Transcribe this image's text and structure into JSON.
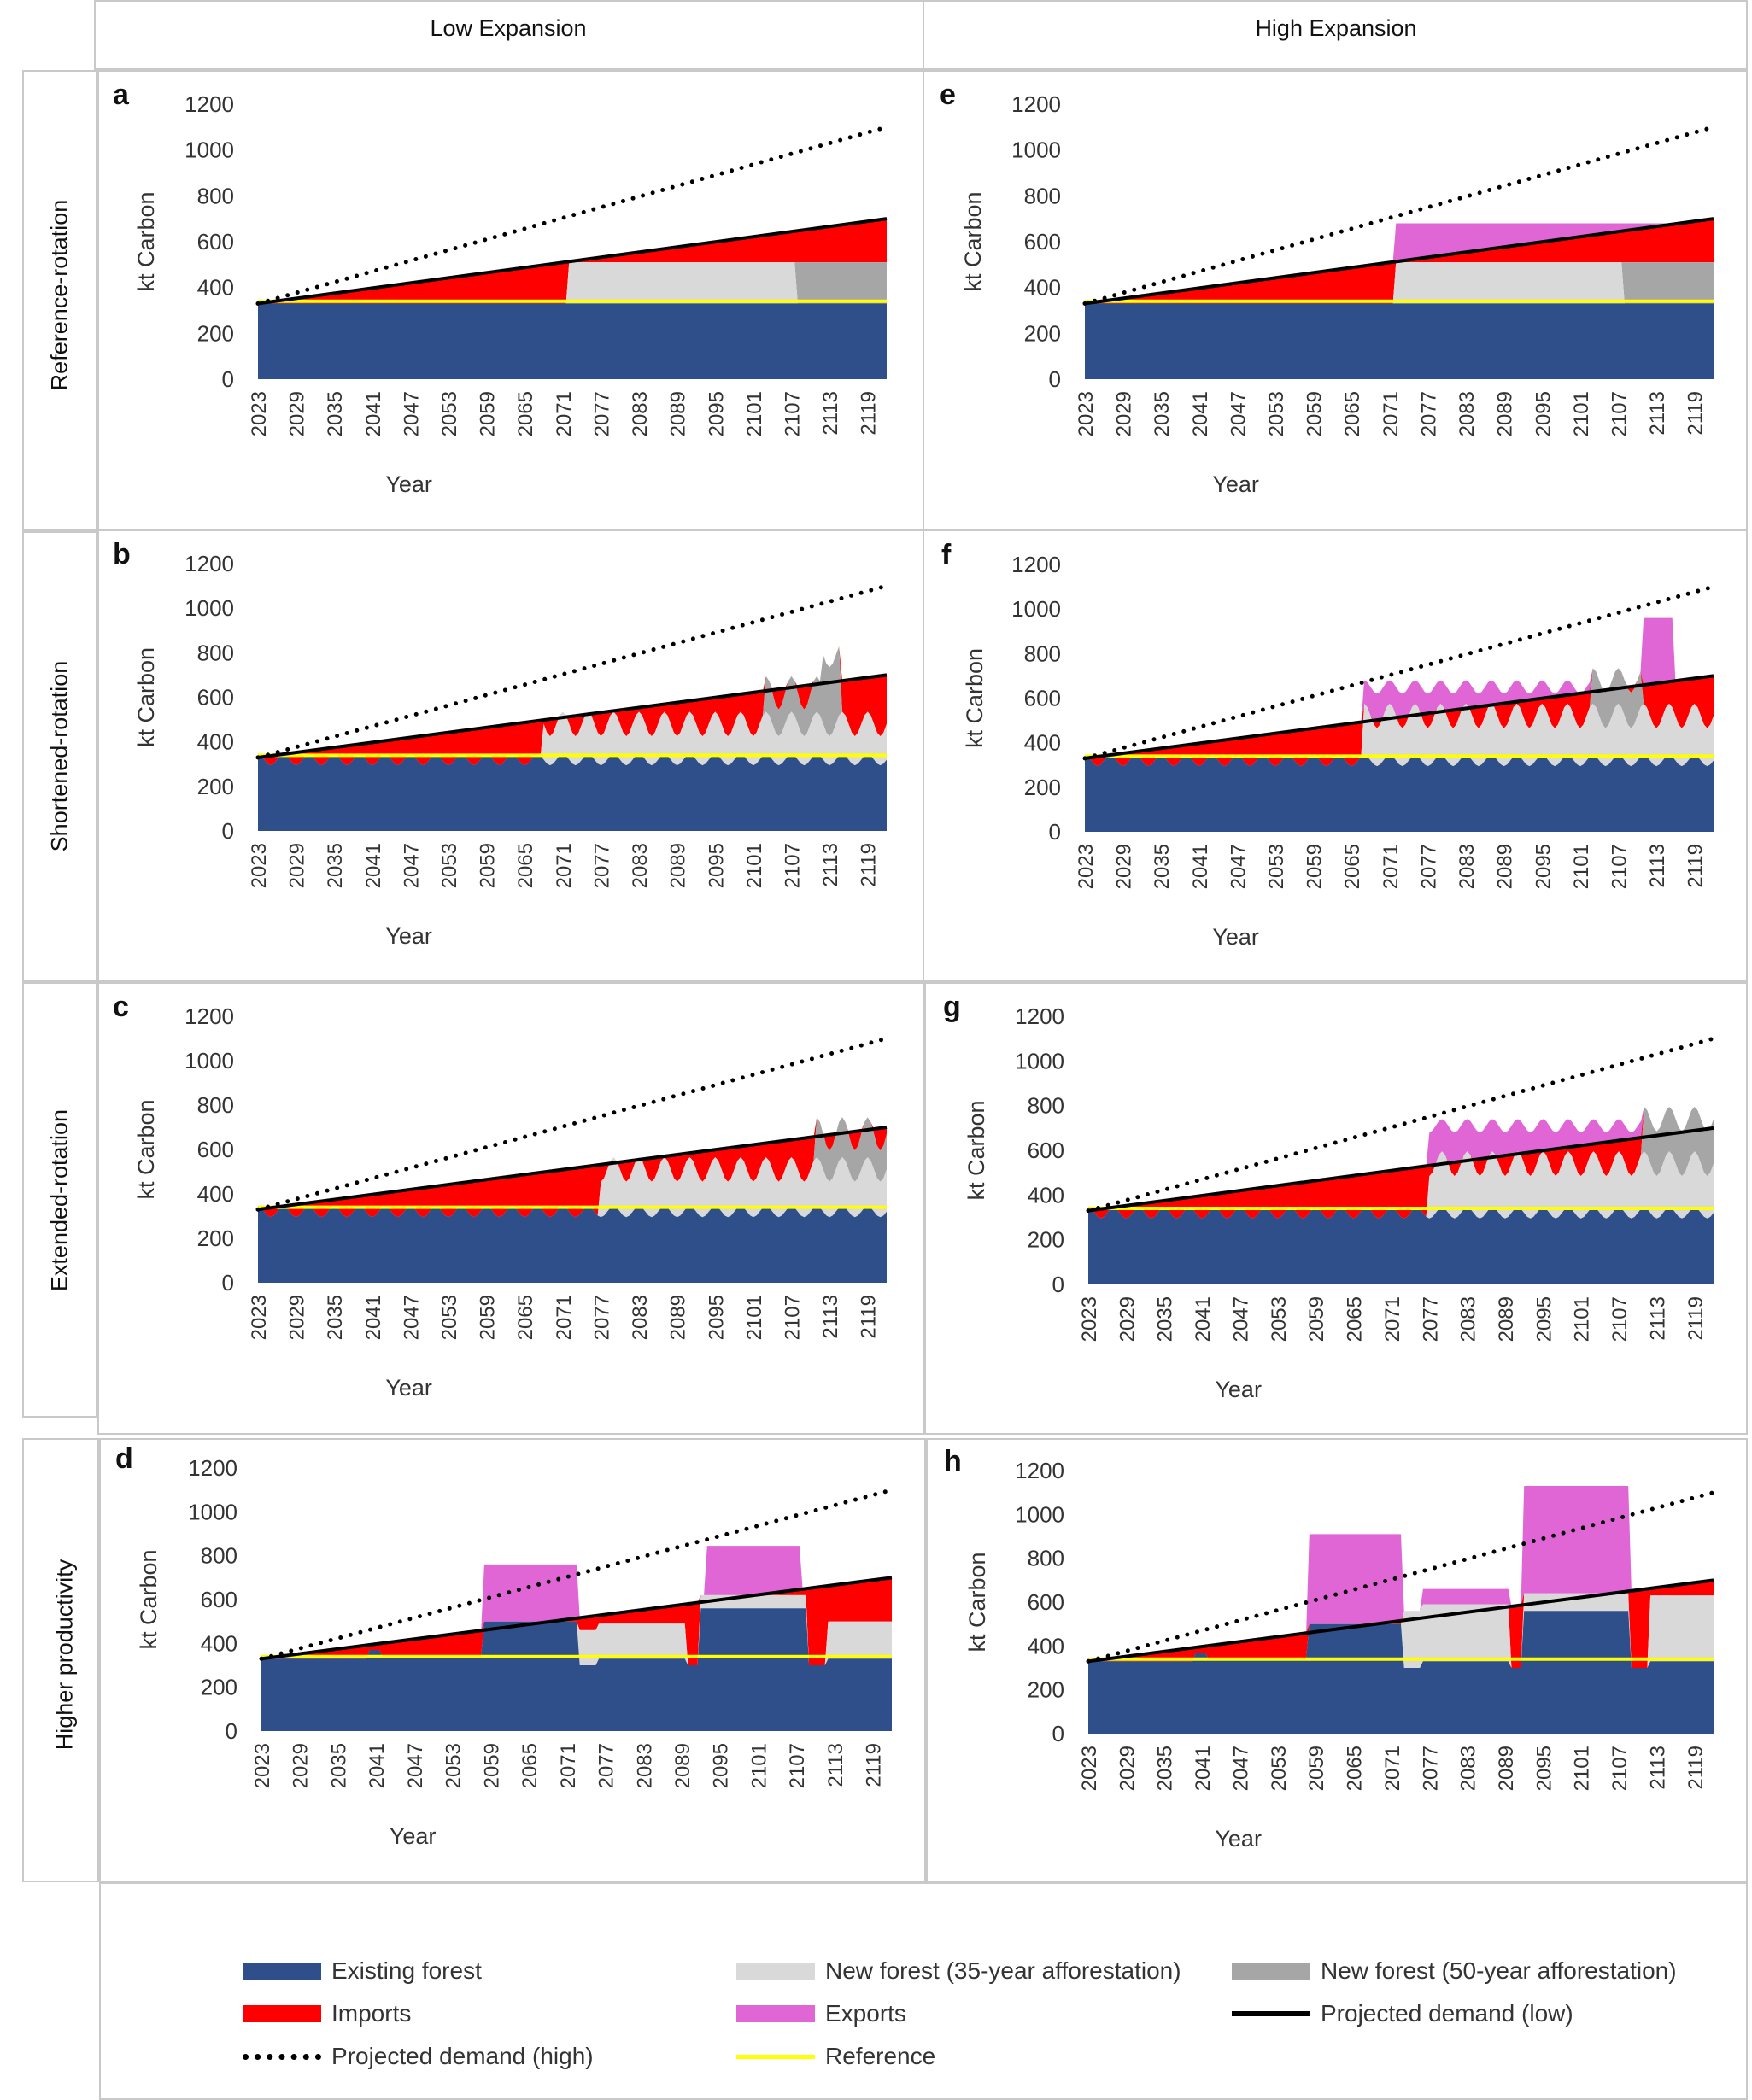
{
  "columns": [
    "Low Expansion",
    "High Expansion"
  ],
  "rows": [
    "Reference-rotation",
    "Shortened-rotation",
    "Extended-rotation",
    "Higher productivity"
  ],
  "colors": {
    "existing": "#2E4F8A",
    "new35": "#D9D9D9",
    "new50": "#A6A6A6",
    "imports": "#FF0000",
    "exports": "#E066D6",
    "demand_low": "#000000",
    "demand_high": "#000000",
    "reference": "#FFFF00"
  },
  "legend": [
    {
      "key": "existing",
      "label": "Existing forest",
      "style": "fill"
    },
    {
      "key": "new35",
      "label": "New forest (35-year afforestation)",
      "style": "fill"
    },
    {
      "key": "new50",
      "label": "New forest (50-year afforestation)",
      "style": "fill"
    },
    {
      "key": "imports",
      "label": "Imports",
      "style": "fill"
    },
    {
      "key": "exports",
      "label": "Exports",
      "style": "fill"
    },
    {
      "key": "demand_low",
      "label": "Projected demand (low)",
      "style": "solid"
    },
    {
      "key": "demand_high",
      "label": "Projected demand (high)",
      "style": "dotted"
    },
    {
      "key": "reference",
      "label": "Reference",
      "style": "line"
    }
  ],
  "chart_data": [
    {
      "panel": "a",
      "type": "area",
      "row": "Reference-rotation",
      "column": "Low Expansion",
      "ylabel": "kt Carbon",
      "xlabel": "Year",
      "ylim": [
        0,
        1200
      ],
      "yticks": [
        0,
        200,
        400,
        600,
        800,
        1000,
        1200
      ],
      "xlim": [
        2023,
        2122
      ],
      "xticks": [
        "2023",
        "2029",
        "2035",
        "2041",
        "2047",
        "2053",
        "2059",
        "2065",
        "2071",
        "2077",
        "2083",
        "2089",
        "2095",
        "2101",
        "2107",
        "2113",
        "2119"
      ],
      "demand_low": [
        [
          2023,
          330
        ],
        [
          2122,
          700
        ]
      ],
      "demand_high": [
        [
          2023,
          330
        ],
        [
          2122,
          1100
        ]
      ],
      "reference": 340,
      "existing": [
        [
          2023,
          330
        ],
        [
          2122,
          330
        ]
      ],
      "new35": [
        [
          2023,
          0
        ],
        [
          2072,
          0
        ],
        [
          2073,
          180
        ],
        [
          2122,
          180
        ]
      ],
      "new50": [
        [
          2023,
          0
        ],
        [
          2108,
          0
        ],
        [
          2109,
          180
        ],
        [
          2122,
          180
        ]
      ],
      "imports_to": "demand_low"
    },
    {
      "panel": "b",
      "type": "area",
      "row": "Shortened-rotation",
      "column": "Low Expansion",
      "ylabel": "kt Carbon",
      "xlabel": "Year",
      "ylim": [
        0,
        1200
      ],
      "yticks": [
        0,
        200,
        400,
        600,
        800,
        1000,
        1200
      ],
      "xlim": [
        2023,
        2122
      ],
      "xticks": [
        "2023",
        "2029",
        "2035",
        "2041",
        "2047",
        "2053",
        "2059",
        "2065",
        "2071",
        "2077",
        "2083",
        "2089",
        "2095",
        "2101",
        "2107",
        "2113",
        "2119"
      ],
      "demand_low": [
        [
          2023,
          330
        ],
        [
          2122,
          700
        ]
      ],
      "demand_high": [
        [
          2023,
          330
        ],
        [
          2122,
          1100
        ]
      ],
      "reference": 340,
      "existing_osc": {
        "base": 330,
        "amp": 30,
        "period": 5
      },
      "new35_level": [
        [
          2023,
          0
        ],
        [
          2067,
          0
        ],
        [
          2068,
          170
        ],
        [
          2122,
          170
        ]
      ],
      "new50_level": [
        [
          2023,
          0
        ],
        [
          2104,
          0
        ],
        [
          2105,
          150
        ],
        [
          2122,
          150
        ]
      ],
      "imports_to": "demand_low"
    },
    {
      "panel": "c",
      "type": "area",
      "row": "Extended-rotation",
      "column": "Low Expansion",
      "ylabel": "kt Carbon",
      "xlabel": "Year",
      "ylim": [
        0,
        1200
      ],
      "yticks": [
        0,
        200,
        400,
        600,
        800,
        1000,
        1200
      ],
      "xlim": [
        2023,
        2122
      ],
      "xticks": [
        "2023",
        "2029",
        "2035",
        "2041",
        "2047",
        "2053",
        "2059",
        "2065",
        "2071",
        "2077",
        "2083",
        "2089",
        "2095",
        "2101",
        "2107",
        "2113",
        "2119"
      ],
      "demand_low": [
        [
          2023,
          330
        ],
        [
          2122,
          700
        ]
      ],
      "demand_high": [
        [
          2023,
          330
        ],
        [
          2122,
          1100
        ]
      ],
      "reference": 340,
      "existing_osc": {
        "base": 330,
        "amp": 30,
        "period": 5
      },
      "new35_level": [
        [
          2023,
          0
        ],
        [
          2076,
          0
        ],
        [
          2077,
          190
        ],
        [
          2122,
          190
        ]
      ],
      "new50_level": [
        [
          2023,
          0
        ],
        [
          2110,
          0
        ],
        [
          2111,
          150
        ],
        [
          2122,
          150
        ]
      ],
      "imports_to": "demand_low"
    },
    {
      "panel": "d",
      "type": "area",
      "row": "Higher productivity",
      "column": "Low Expansion",
      "ylabel": "kt Carbon",
      "xlabel": "Year",
      "ylim": [
        0,
        1200
      ],
      "yticks": [
        0,
        200,
        400,
        600,
        800,
        1000,
        1200
      ],
      "xlim": [
        2023,
        2122
      ],
      "xticks": [
        "2023",
        "2029",
        "2035",
        "2041",
        "2047",
        "2053",
        "2059",
        "2065",
        "2071",
        "2077",
        "2083",
        "2089",
        "2095",
        "2101",
        "2107",
        "2113",
        "2119"
      ],
      "demand_low": [
        [
          2023,
          330
        ],
        [
          2122,
          700
        ]
      ],
      "demand_high": [
        [
          2023,
          330
        ],
        [
          2122,
          1100
        ]
      ],
      "reference": 340
    },
    {
      "panel": "e",
      "type": "area",
      "row": "Reference-rotation",
      "column": "High Expansion",
      "ylabel": "kt Carbon",
      "xlabel": "Year",
      "ylim": [
        0,
        1200
      ],
      "yticks": [
        0,
        200,
        400,
        600,
        800,
        1000,
        1200
      ],
      "xlim": [
        2023,
        2122
      ],
      "xticks": [
        "2023",
        "2029",
        "2035",
        "2041",
        "2047",
        "2053",
        "2059",
        "2065",
        "2071",
        "2077",
        "2083",
        "2089",
        "2095",
        "2101",
        "2107",
        "2113",
        "2119"
      ],
      "demand_low": [
        [
          2023,
          330
        ],
        [
          2122,
          700
        ]
      ],
      "demand_high": [
        [
          2023,
          330
        ],
        [
          2122,
          1100
        ]
      ],
      "reference": 340,
      "exports_top": 680
    },
    {
      "panel": "f",
      "type": "area",
      "row": "Shortened-rotation",
      "column": "High Expansion",
      "ylabel": "kt Carbon",
      "xlabel": "Year",
      "ylim": [
        0,
        1200
      ],
      "yticks": [
        0,
        200,
        400,
        600,
        800,
        1000,
        1200
      ],
      "xlim": [
        2023,
        2122
      ],
      "xticks": [
        "2023",
        "2029",
        "2035",
        "2041",
        "2047",
        "2053",
        "2059",
        "2065",
        "2071",
        "2077",
        "2083",
        "2089",
        "2095",
        "2101",
        "2107",
        "2113",
        "2119"
      ],
      "demand_low": [
        [
          2023,
          330
        ],
        [
          2122,
          700
        ]
      ],
      "demand_high": [
        [
          2023,
          330
        ],
        [
          2122,
          1100
        ]
      ],
      "reference": 340
    },
    {
      "panel": "g",
      "type": "area",
      "row": "Extended-rotation",
      "column": "High Expansion",
      "ylabel": "kt Carbon",
      "xlabel": "Year",
      "ylim": [
        0,
        1200
      ],
      "yticks": [
        0,
        200,
        400,
        600,
        800,
        1000,
        1200
      ],
      "xlim": [
        2023,
        2122
      ],
      "xticks": [
        "2023",
        "2029",
        "2035",
        "2041",
        "2047",
        "2053",
        "2059",
        "2065",
        "2071",
        "2077",
        "2083",
        "2089",
        "2095",
        "2101",
        "2107",
        "2113",
        "2119"
      ],
      "demand_low": [
        [
          2023,
          330
        ],
        [
          2122,
          700
        ]
      ],
      "demand_high": [
        [
          2023,
          330
        ],
        [
          2122,
          1100
        ]
      ],
      "reference": 340
    },
    {
      "panel": "h",
      "type": "area",
      "row": "Higher productivity",
      "column": "High Expansion",
      "ylabel": "kt Carbon",
      "xlabel": "Year",
      "ylim": [
        0,
        1200
      ],
      "yticks": [
        0,
        200,
        400,
        600,
        800,
        1000,
        1200
      ],
      "xlim": [
        2023,
        2122
      ],
      "xticks": [
        "2023",
        "2029",
        "2035",
        "2041",
        "2047",
        "2053",
        "2059",
        "2065",
        "2071",
        "2077",
        "2083",
        "2089",
        "2095",
        "2101",
        "2107",
        "2113",
        "2119"
      ],
      "demand_low": [
        [
          2023,
          330
        ],
        [
          2122,
          700
        ]
      ],
      "demand_high": [
        [
          2023,
          330
        ],
        [
          2122,
          1100
        ]
      ],
      "reference": 340
    }
  ]
}
